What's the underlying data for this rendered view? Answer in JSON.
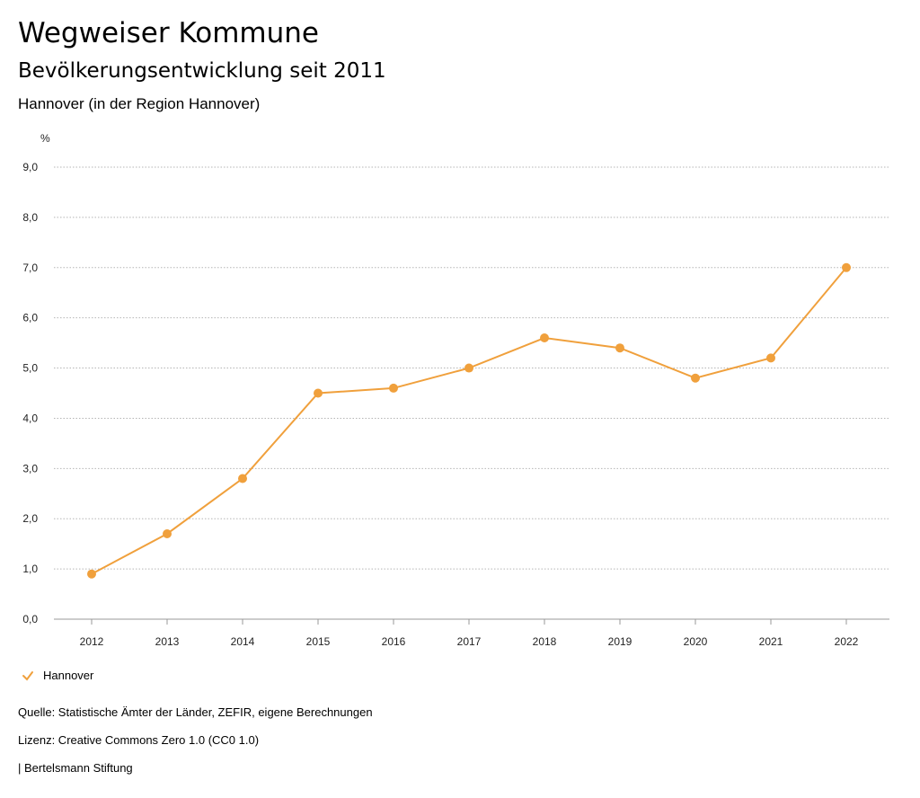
{
  "header": {
    "title": "Wegweiser Kommune",
    "subtitle": "Bevölkerungsentwicklung seit 2011",
    "region": "Hannover (in der Region Hannover)"
  },
  "colors": {
    "series": "#f0a03c",
    "grid": "#b5b5b5",
    "axis": "#999999"
  },
  "chart_data": {
    "type": "line",
    "title": "Bevölkerungsentwicklung seit 2011",
    "ylabel": "%",
    "xlabel": "",
    "x": [
      "2012",
      "2013",
      "2014",
      "2015",
      "2016",
      "2017",
      "2018",
      "2019",
      "2020",
      "2021",
      "2022"
    ],
    "yticks": [
      "0,0",
      "1,0",
      "2,0",
      "3,0",
      "4,0",
      "5,0",
      "6,0",
      "7,0",
      "8,0",
      "9,0"
    ],
    "ylim": [
      0,
      9
    ],
    "grid": true,
    "series": [
      {
        "name": "Hannover",
        "values": [
          0.9,
          1.7,
          2.8,
          4.5,
          4.6,
          5.0,
          5.6,
          5.4,
          4.8,
          5.2,
          7.0
        ]
      }
    ]
  },
  "legend": {
    "label": "Hannover"
  },
  "footer": {
    "source": "Quelle: Statistische Ämter der Länder, ZEFIR, eigene Berechnungen",
    "license": "Lizenz: Creative Commons Zero 1.0 (CC0 1.0)",
    "brand": "| Bertelsmann Stiftung"
  }
}
